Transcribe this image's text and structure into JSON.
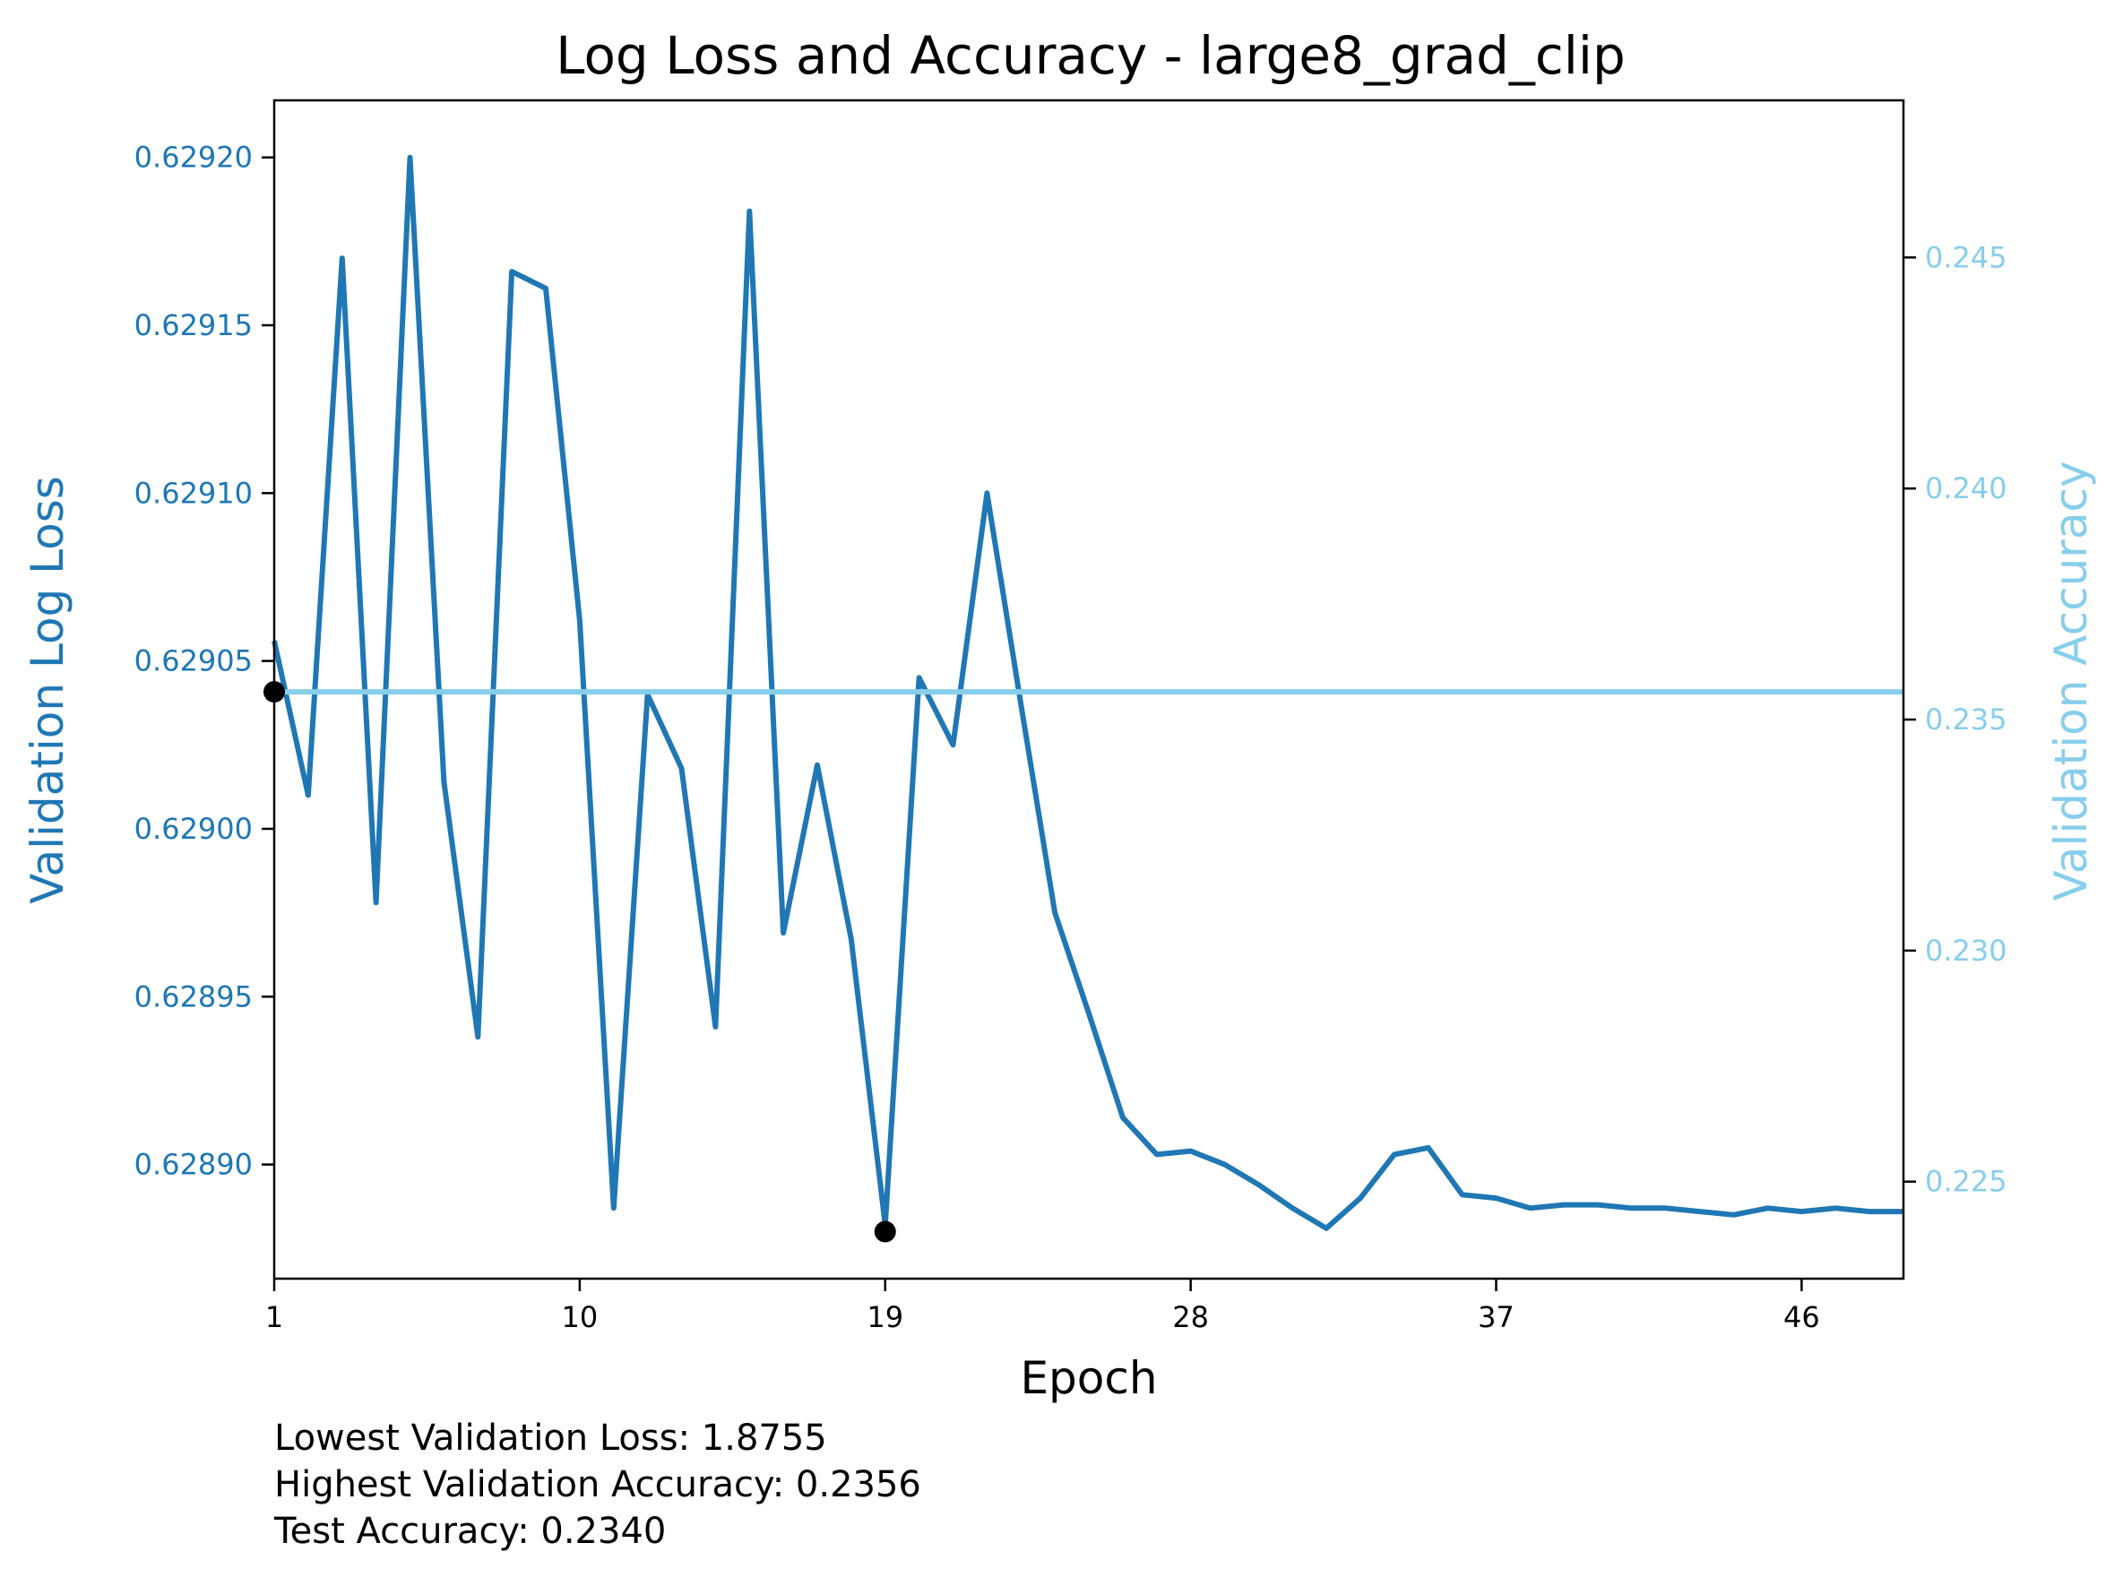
{
  "colors": {
    "loss": "#1f77b4",
    "accuracy": "#87ceeb",
    "marker": "#000000",
    "text": "#000000"
  },
  "chart_data": {
    "type": "line",
    "title": "Log Loss and Accuracy - large8_grad_clip",
    "xlabel": "Epoch",
    "ylabel_left": "Validation Log Loss",
    "ylabel_right": "Validation Accuracy",
    "xlim": [
      1,
      49
    ],
    "ylim_left": [
      0.628866,
      0.629217
    ],
    "ylim_right": [
      0.2229,
      0.2484
    ],
    "x_ticks": [
      1,
      10,
      19,
      28,
      37,
      46
    ],
    "y_ticks_left": [
      "0.62890",
      "0.62895",
      "0.62900",
      "0.62905",
      "0.62910",
      "0.62915",
      "0.62920"
    ],
    "y_ticks_right": [
      "0.225",
      "0.230",
      "0.235",
      "0.240",
      "0.245"
    ],
    "grid": false,
    "series": [
      {
        "axis": "left",
        "epochs": [
          1,
          2,
          3,
          4,
          5,
          6,
          7,
          8,
          9,
          10,
          11,
          12,
          13,
          14,
          15,
          16,
          17,
          18,
          19,
          20,
          21,
          22,
          23,
          24,
          25,
          26,
          27,
          28,
          29,
          30,
          31,
          32,
          33,
          34,
          35,
          36,
          37,
          38,
          39,
          40,
          41,
          42,
          43,
          44,
          45,
          46,
          47,
          48,
          49
        ],
        "values": [
          0.629056,
          0.62901,
          0.62917,
          0.628978,
          0.6292,
          0.629014,
          0.628938,
          0.629166,
          0.629161,
          0.629062,
          0.628887,
          0.62904,
          0.629018,
          0.628941,
          0.629184,
          0.628969,
          0.629019,
          0.628967,
          0.628882,
          0.629045,
          0.629025,
          0.6291,
          0.629037,
          0.628975,
          0.628945,
          0.628914,
          0.628903,
          0.628904,
          0.6289,
          0.628894,
          0.628887,
          0.628881,
          0.62889,
          0.628903,
          0.628905,
          0.628891,
          0.62889,
          0.628887,
          0.628888,
          0.628888,
          0.628887,
          0.628887,
          0.628886,
          0.628885,
          0.628887,
          0.628886,
          0.628887,
          0.628886,
          0.628886
        ]
      },
      {
        "axis": "right",
        "epochs": [
          1,
          49
        ],
        "values": [
          0.2356,
          0.2356
        ]
      }
    ],
    "markers": [
      {
        "axis": "right",
        "epoch": 1,
        "value": 0.2356
      },
      {
        "axis": "left",
        "epoch": 19,
        "value": 0.62888
      }
    ]
  },
  "summary": {
    "line1": "Lowest Validation Loss: 1.8755",
    "line2": "Highest Validation Accuracy: 0.2356",
    "line3": "Test Accuracy: 0.2340"
  }
}
